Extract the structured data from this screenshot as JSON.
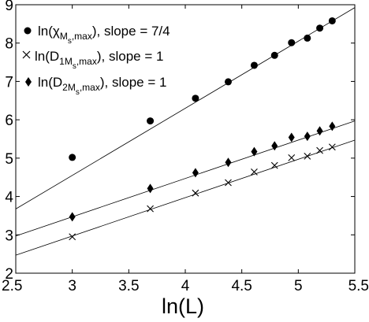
{
  "chart_data": {
    "type": "scatter",
    "xlabel": "ln(L)",
    "ylabel": "",
    "xlim": [
      2.5,
      5.5
    ],
    "ylim": [
      2,
      9
    ],
    "grid": false,
    "legend_position": "top-left",
    "x_ticks": [
      "2.5",
      "3",
      "3.5",
      "4",
      "4.5",
      "5",
      "5.5"
    ],
    "y_ticks": [
      "2",
      "3",
      "4",
      "5",
      "6",
      "7",
      "8",
      "9"
    ],
    "legend": {
      "chi": {
        "pre": "ln(χ",
        "sub1": "M",
        "mid": "",
        "subsub": "s",
        "sub2": ",max",
        "post": "), slope = 7/4"
      },
      "d1": {
        "pre": "ln(D",
        "sub1": "1M",
        "subsub": "s",
        "sub2": ",max",
        "post": "), slope = 1"
      },
      "d2": {
        "pre": "ln(D",
        "sub1": "2M",
        "subsub": "s",
        "sub2": ",max",
        "post": "), slope = 1"
      }
    },
    "series": [
      {
        "key": "chi",
        "marker": "circle",
        "x": [
          3.0,
          3.69,
          4.09,
          4.38,
          4.61,
          4.79,
          4.94,
          5.08,
          5.19,
          5.3
        ],
        "y": [
          5.02,
          5.97,
          6.56,
          6.99,
          7.42,
          7.68,
          8.01,
          8.13,
          8.39,
          8.58
        ]
      },
      {
        "key": "d1",
        "marker": "x",
        "x": [
          3.0,
          3.69,
          4.09,
          4.38,
          4.61,
          4.79,
          4.94,
          5.08,
          5.19,
          5.3
        ],
        "y": [
          2.95,
          3.68,
          4.09,
          4.36,
          4.64,
          4.81,
          5.01,
          5.05,
          5.2,
          5.29
        ]
      },
      {
        "key": "d2",
        "marker": "diamond",
        "x": [
          3.0,
          3.69,
          4.09,
          4.38,
          4.61,
          4.79,
          4.94,
          5.08,
          5.19,
          5.3
        ],
        "y": [
          3.47,
          4.21,
          4.62,
          4.89,
          5.17,
          5.32,
          5.54,
          5.57,
          5.71,
          5.83
        ]
      }
    ],
    "fit_lines": [
      {
        "key": "chi",
        "slope": 1.75,
        "intercept": -0.7
      },
      {
        "key": "d2",
        "slope": 1.0,
        "intercept": 0.47
      },
      {
        "key": "d1",
        "slope": 1.0,
        "intercept": -0.03
      }
    ]
  }
}
